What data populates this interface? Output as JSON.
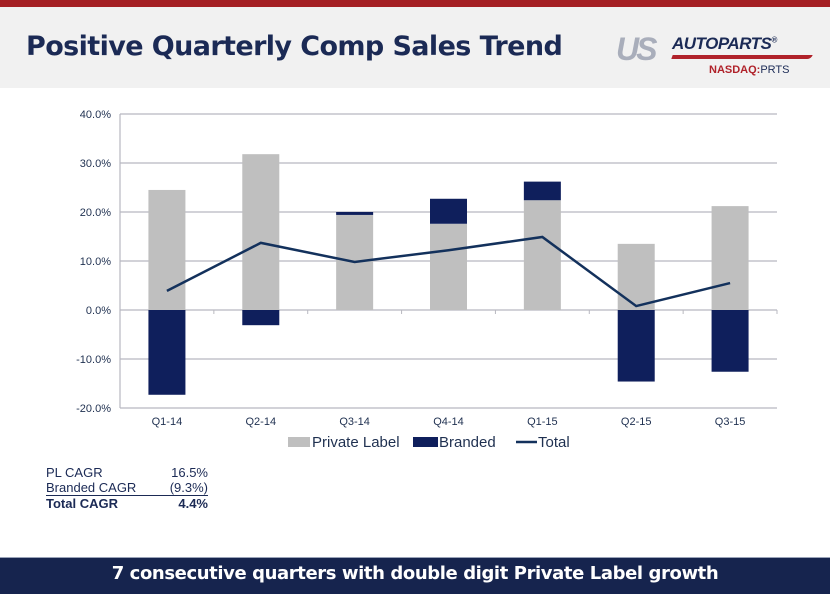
{
  "header": {
    "title": "Positive Quarterly Comp Sales Trend",
    "logo": {
      "us": "US",
      "autoparts": "AUTOPARTS",
      "registered": "®",
      "exchange": "NASDAQ:",
      "ticker": "PRTS"
    }
  },
  "colors": {
    "private_label": "#bfbfbf",
    "branded": "#0f1f5c",
    "total": "#13315c",
    "header_bar": "#a51f24",
    "footer": "#16244e"
  },
  "chart_data": {
    "type": "bar",
    "stacked": true,
    "title": "",
    "xlabel": "",
    "ylabel": "",
    "categories": [
      "Q1-14",
      "Q2-14",
      "Q3-14",
      "Q4-14",
      "Q1-15",
      "Q2-15",
      "Q3-15"
    ],
    "series": [
      {
        "name": "Private Label",
        "type": "bar",
        "values": [
          24.5,
          31.8,
          19.4,
          17.6,
          22.4,
          13.5,
          21.2
        ]
      },
      {
        "name": "Branded",
        "type": "bar",
        "values": [
          -17.3,
          -3.1,
          0.6,
          5.1,
          3.8,
          -14.6,
          -12.6
        ]
      },
      {
        "name": "Total",
        "type": "line",
        "values": [
          3.9,
          13.7,
          9.8,
          12.2,
          14.9,
          0.8,
          5.5
        ]
      }
    ],
    "ylim": [
      -20,
      40
    ],
    "yticks": [
      40,
      30,
      20,
      10,
      0,
      -10,
      -20
    ],
    "ytick_labels": [
      "40.0%",
      "30.0%",
      "20.0%",
      "10.0%",
      "0.0%",
      "-10.0%",
      "-20.0%"
    ],
    "grid": true,
    "legend": {
      "placement": "bottom",
      "entries": [
        "Private Label",
        "Branded",
        "Total"
      ]
    }
  },
  "cagr": [
    {
      "label": "PL CAGR",
      "value": "16.5%"
    },
    {
      "label": "Branded CAGR",
      "value": "(9.3%)"
    },
    {
      "label": "Total CAGR",
      "value": "4.4%"
    }
  ],
  "footer": {
    "text": "7 consecutive quarters with double digit Private Label growth"
  }
}
